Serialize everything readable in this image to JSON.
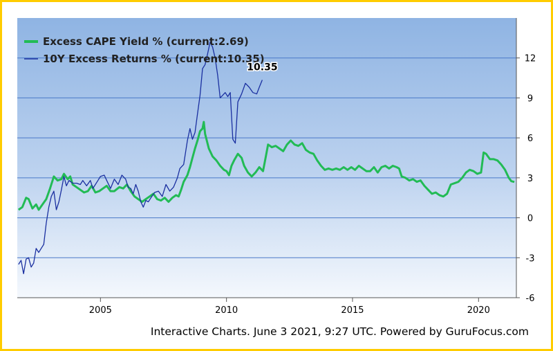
{
  "chart_data": {
    "type": "line",
    "xlim": [
      2001.7,
      2021.5
    ],
    "ylim": [
      -6,
      15
    ],
    "yticks": [
      12,
      9,
      6,
      3,
      0,
      -3,
      -6
    ],
    "xticks": [
      2005,
      2010,
      2015,
      2020
    ],
    "grid": true,
    "legend_position": "top-left",
    "series": [
      {
        "name": "Excess CAPE Yield % (current:2.69)",
        "color": "#22bb55",
        "points": [
          [
            2001.75,
            0.6
          ],
          [
            2001.9,
            0.8
          ],
          [
            2002.05,
            1.5
          ],
          [
            2002.15,
            1.4
          ],
          [
            2002.3,
            0.7
          ],
          [
            2002.45,
            1.0
          ],
          [
            2002.55,
            0.6
          ],
          [
            2002.7,
            1.0
          ],
          [
            2002.85,
            1.4
          ],
          [
            2003.0,
            2.2
          ],
          [
            2003.15,
            3.1
          ],
          [
            2003.3,
            2.8
          ],
          [
            2003.45,
            2.9
          ],
          [
            2003.55,
            3.3
          ],
          [
            2003.7,
            2.9
          ],
          [
            2003.8,
            3.1
          ],
          [
            2003.9,
            2.5
          ],
          [
            2004.05,
            2.3
          ],
          [
            2004.2,
            2.1
          ],
          [
            2004.35,
            1.9
          ],
          [
            2004.5,
            2.0
          ],
          [
            2004.65,
            2.4
          ],
          [
            2004.8,
            1.9
          ],
          [
            2004.95,
            2.0
          ],
          [
            2005.1,
            2.2
          ],
          [
            2005.25,
            2.4
          ],
          [
            2005.4,
            2.0
          ],
          [
            2005.55,
            2.0
          ],
          [
            2005.75,
            2.3
          ],
          [
            2005.9,
            2.2
          ],
          [
            2006.05,
            2.5
          ],
          [
            2006.2,
            2.0
          ],
          [
            2006.35,
            1.6
          ],
          [
            2006.5,
            1.4
          ],
          [
            2006.65,
            1.2
          ],
          [
            2006.8,
            1.4
          ],
          [
            2006.95,
            1.6
          ],
          [
            2007.1,
            1.8
          ],
          [
            2007.25,
            1.4
          ],
          [
            2007.4,
            1.3
          ],
          [
            2007.55,
            1.5
          ],
          [
            2007.7,
            1.2
          ],
          [
            2007.85,
            1.5
          ],
          [
            2008.0,
            1.7
          ],
          [
            2008.1,
            1.6
          ],
          [
            2008.2,
            2.1
          ],
          [
            2008.3,
            2.7
          ],
          [
            2008.45,
            3.2
          ],
          [
            2008.55,
            3.8
          ],
          [
            2008.65,
            4.5
          ],
          [
            2008.75,
            5.2
          ],
          [
            2008.85,
            5.8
          ],
          [
            2008.95,
            6.5
          ],
          [
            2009.05,
            6.7
          ],
          [
            2009.1,
            7.2
          ],
          [
            2009.15,
            6.3
          ],
          [
            2009.3,
            5.2
          ],
          [
            2009.45,
            4.6
          ],
          [
            2009.6,
            4.3
          ],
          [
            2009.75,
            3.9
          ],
          [
            2009.9,
            3.6
          ],
          [
            2010.0,
            3.5
          ],
          [
            2010.1,
            3.2
          ],
          [
            2010.2,
            3.9
          ],
          [
            2010.3,
            4.3
          ],
          [
            2010.45,
            4.8
          ],
          [
            2010.6,
            4.5
          ],
          [
            2010.7,
            3.9
          ],
          [
            2010.85,
            3.4
          ],
          [
            2011.0,
            3.1
          ],
          [
            2011.15,
            3.4
          ],
          [
            2011.3,
            3.8
          ],
          [
            2011.45,
            3.5
          ],
          [
            2011.55,
            4.5
          ],
          [
            2011.65,
            5.5
          ],
          [
            2011.8,
            5.3
          ],
          [
            2011.95,
            5.4
          ],
          [
            2012.1,
            5.2
          ],
          [
            2012.25,
            5.0
          ],
          [
            2012.4,
            5.5
          ],
          [
            2012.55,
            5.8
          ],
          [
            2012.7,
            5.5
          ],
          [
            2012.85,
            5.4
          ],
          [
            2013.0,
            5.6
          ],
          [
            2013.15,
            5.1
          ],
          [
            2013.3,
            4.9
          ],
          [
            2013.45,
            4.8
          ],
          [
            2013.6,
            4.3
          ],
          [
            2013.75,
            3.9
          ],
          [
            2013.9,
            3.6
          ],
          [
            2014.05,
            3.7
          ],
          [
            2014.2,
            3.6
          ],
          [
            2014.35,
            3.7
          ],
          [
            2014.5,
            3.6
          ],
          [
            2014.65,
            3.8
          ],
          [
            2014.8,
            3.6
          ],
          [
            2014.95,
            3.8
          ],
          [
            2015.1,
            3.6
          ],
          [
            2015.25,
            3.9
          ],
          [
            2015.4,
            3.7
          ],
          [
            2015.55,
            3.5
          ],
          [
            2015.7,
            3.5
          ],
          [
            2015.85,
            3.8
          ],
          [
            2016.0,
            3.4
          ],
          [
            2016.15,
            3.8
          ],
          [
            2016.3,
            3.9
          ],
          [
            2016.45,
            3.7
          ],
          [
            2016.6,
            3.9
          ],
          [
            2016.75,
            3.8
          ],
          [
            2016.85,
            3.7
          ],
          [
            2016.95,
            3.1
          ],
          [
            2017.1,
            3.0
          ],
          [
            2017.25,
            2.8
          ],
          [
            2017.4,
            2.9
          ],
          [
            2017.55,
            2.7
          ],
          [
            2017.7,
            2.8
          ],
          [
            2017.85,
            2.4
          ],
          [
            2018.0,
            2.1
          ],
          [
            2018.15,
            1.8
          ],
          [
            2018.3,
            1.9
          ],
          [
            2018.45,
            1.7
          ],
          [
            2018.6,
            1.6
          ],
          [
            2018.75,
            1.8
          ],
          [
            2018.9,
            2.5
          ],
          [
            2019.05,
            2.6
          ],
          [
            2019.2,
            2.7
          ],
          [
            2019.35,
            3.0
          ],
          [
            2019.5,
            3.4
          ],
          [
            2019.65,
            3.6
          ],
          [
            2019.8,
            3.5
          ],
          [
            2019.95,
            3.3
          ],
          [
            2020.1,
            3.4
          ],
          [
            2020.2,
            4.9
          ],
          [
            2020.3,
            4.8
          ],
          [
            2020.45,
            4.4
          ],
          [
            2020.6,
            4.4
          ],
          [
            2020.75,
            4.3
          ],
          [
            2020.9,
            4.0
          ],
          [
            2021.05,
            3.6
          ],
          [
            2021.2,
            3.0
          ],
          [
            2021.3,
            2.75
          ],
          [
            2021.42,
            2.69
          ]
        ]
      },
      {
        "name": "10Y Excess Returns % (current:10.35)",
        "color": "#1a2fa0",
        "points": [
          [
            2001.75,
            -3.5
          ],
          [
            2001.85,
            -3.2
          ],
          [
            2001.95,
            -4.2
          ],
          [
            2002.05,
            -3.1
          ],
          [
            2002.15,
            -3.0
          ],
          [
            2002.25,
            -3.7
          ],
          [
            2002.35,
            -3.4
          ],
          [
            2002.45,
            -2.3
          ],
          [
            2002.55,
            -2.6
          ],
          [
            2002.65,
            -2.3
          ],
          [
            2002.75,
            -2.0
          ],
          [
            2002.85,
            -0.4
          ],
          [
            2002.95,
            0.8
          ],
          [
            2003.05,
            1.6
          ],
          [
            2003.15,
            2.0
          ],
          [
            2003.25,
            0.6
          ],
          [
            2003.35,
            1.2
          ],
          [
            2003.45,
            2.1
          ],
          [
            2003.55,
            3.1
          ],
          [
            2003.65,
            2.4
          ],
          [
            2003.75,
            2.8
          ],
          [
            2003.9,
            2.6
          ],
          [
            2004.05,
            2.6
          ],
          [
            2004.2,
            2.5
          ],
          [
            2004.3,
            2.8
          ],
          [
            2004.45,
            2.4
          ],
          [
            2004.6,
            2.8
          ],
          [
            2004.7,
            2.2
          ],
          [
            2004.8,
            2.5
          ],
          [
            2004.9,
            2.8
          ],
          [
            2005.0,
            3.1
          ],
          [
            2005.15,
            3.2
          ],
          [
            2005.25,
            2.8
          ],
          [
            2005.4,
            2.2
          ],
          [
            2005.55,
            2.9
          ],
          [
            2005.7,
            2.5
          ],
          [
            2005.85,
            3.2
          ],
          [
            2006.0,
            2.9
          ],
          [
            2006.1,
            2.3
          ],
          [
            2006.2,
            2.2
          ],
          [
            2006.3,
            1.8
          ],
          [
            2006.4,
            2.5
          ],
          [
            2006.5,
            2.0
          ],
          [
            2006.6,
            1.2
          ],
          [
            2006.7,
            0.8
          ],
          [
            2006.8,
            1.3
          ],
          [
            2006.9,
            1.2
          ],
          [
            2007.0,
            1.5
          ],
          [
            2007.15,
            1.9
          ],
          [
            2007.3,
            2.0
          ],
          [
            2007.45,
            1.6
          ],
          [
            2007.6,
            2.5
          ],
          [
            2007.75,
            2.0
          ],
          [
            2007.9,
            2.3
          ],
          [
            2008.05,
            3.0
          ],
          [
            2008.15,
            3.7
          ],
          [
            2008.3,
            4.0
          ],
          [
            2008.45,
            5.8
          ],
          [
            2008.55,
            6.7
          ],
          [
            2008.65,
            5.9
          ],
          [
            2008.75,
            6.4
          ],
          [
            2008.85,
            7.8
          ],
          [
            2008.95,
            9.2
          ],
          [
            2009.05,
            11.2
          ],
          [
            2009.15,
            11.5
          ],
          [
            2009.25,
            12.3
          ],
          [
            2009.35,
            13.2
          ],
          [
            2009.45,
            12.8
          ],
          [
            2009.55,
            12.0
          ],
          [
            2009.65,
            10.7
          ],
          [
            2009.75,
            9.0
          ],
          [
            2009.85,
            9.2
          ],
          [
            2009.95,
            9.4
          ],
          [
            2010.05,
            9.1
          ],
          [
            2010.15,
            9.4
          ],
          [
            2010.25,
            5.9
          ],
          [
            2010.35,
            5.6
          ],
          [
            2010.45,
            8.7
          ],
          [
            2010.6,
            9.3
          ],
          [
            2010.75,
            10.1
          ],
          [
            2010.9,
            9.8
          ],
          [
            2011.05,
            9.4
          ],
          [
            2011.2,
            9.3
          ],
          [
            2011.3,
            9.8
          ],
          [
            2011.42,
            10.35
          ]
        ]
      }
    ],
    "annotations": [
      {
        "text": "10.35",
        "x": 2011.42,
        "y": 10.35
      }
    ]
  },
  "footer": {
    "text": "Interactive Charts. June 3 2021, 9:27 UTC. Powered by GuruFocus.com"
  }
}
